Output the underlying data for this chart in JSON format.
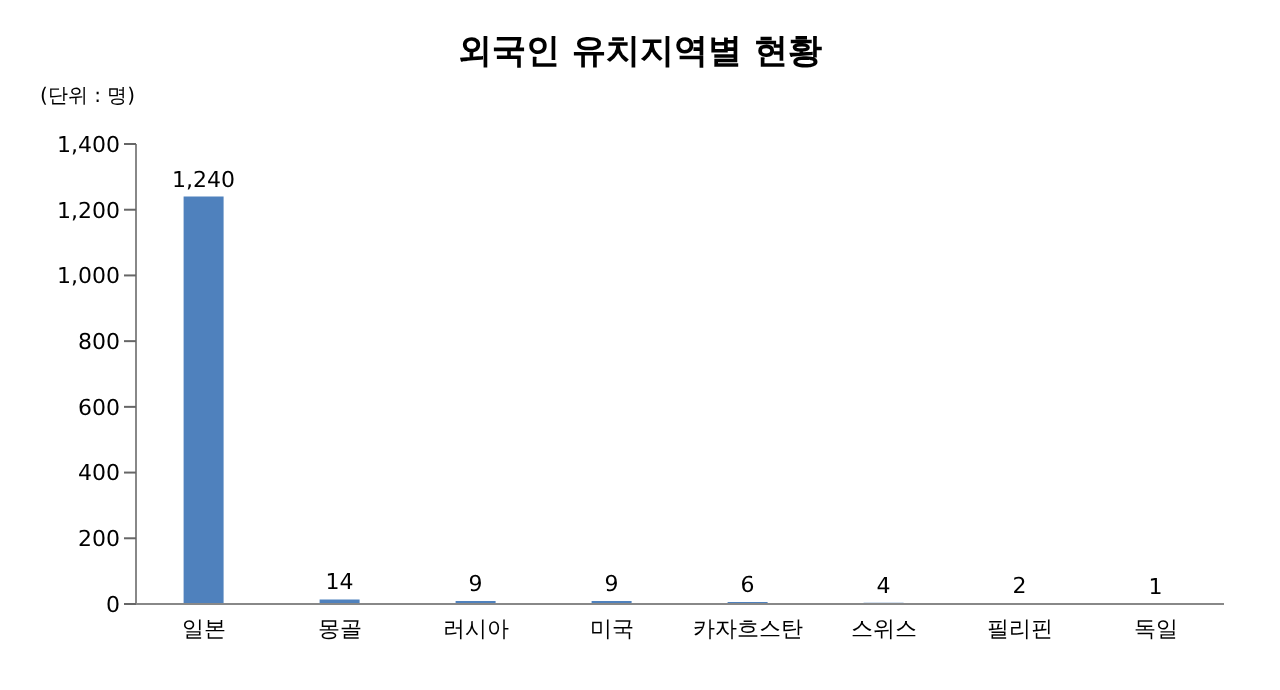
{
  "chart_data": {
    "type": "bar",
    "title": "외국인 유치지역별 현황",
    "annotations": [
      "(단위 : 명)"
    ],
    "categories": [
      "일본",
      "몽골",
      "러시아",
      "미국",
      "카자흐스탄",
      "스위스",
      "필리핀",
      "독일"
    ],
    "values": [
      1240,
      14,
      9,
      9,
      6,
      4,
      2,
      1
    ],
    "color": "#4f81bd",
    "value_labels": [
      "1,240",
      "14",
      "9",
      "9",
      "6",
      "4",
      "2",
      "1"
    ],
    "ylim": [
      0,
      1400
    ],
    "yticks": [
      0,
      200,
      400,
      600,
      800,
      {
        "value": 1000,
        "label": "1,000"
      },
      {
        "value": 1200,
        "label": "1,200"
      },
      {
        "value": 1400,
        "label": "1,400"
      }
    ],
    "grid": false
  }
}
